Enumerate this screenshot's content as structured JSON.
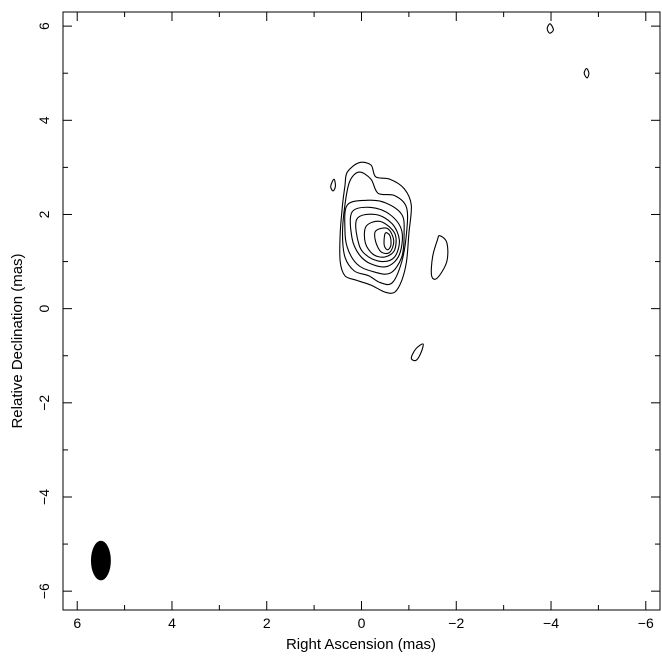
{
  "chart_data": {
    "type": "contour",
    "xlabel": "Right Ascension  (mas)",
    "ylabel": "Relative Declination  (mas)",
    "xlim": [
      6.3,
      -6.3
    ],
    "ylim": [
      -6.4,
      6.3
    ],
    "x_ticks": [
      6,
      4,
      2,
      0,
      -2,
      -4,
      -6
    ],
    "x_tick_labels": [
      "6",
      "4",
      "2",
      "0",
      "−2",
      "−4",
      "−6"
    ],
    "y_ticks": [
      6,
      4,
      2,
      0,
      -2,
      -4,
      -6
    ],
    "y_tick_labels": [
      "6",
      "4",
      "2",
      "0",
      "−2",
      "−4",
      "−6"
    ],
    "minor_tick_step": 1,
    "grid": false,
    "colors": {
      "line": "#000000",
      "background": "#ffffff"
    },
    "beam": {
      "x": 5.5,
      "y": -5.35,
      "width_mas": 0.42,
      "height_mas": 0.84,
      "pa_deg": 0
    },
    "contours": [
      {
        "name": "level-1",
        "closed": true,
        "points": [
          [
            0.3,
            2.9
          ],
          [
            0.05,
            3.1
          ],
          [
            -0.2,
            3.05
          ],
          [
            -0.3,
            2.8
          ],
          [
            -0.6,
            2.75
          ],
          [
            -0.9,
            2.55
          ],
          [
            -1.05,
            2.2
          ],
          [
            -1.0,
            1.6
          ],
          [
            -0.95,
            1.0
          ],
          [
            -0.85,
            0.6
          ],
          [
            -0.7,
            0.35
          ],
          [
            -0.5,
            0.35
          ],
          [
            -0.2,
            0.5
          ],
          [
            0.1,
            0.6
          ],
          [
            0.35,
            0.7
          ],
          [
            0.45,
            1.0
          ],
          [
            0.45,
            1.6
          ],
          [
            0.4,
            2.2
          ],
          [
            0.35,
            2.6
          ]
        ]
      },
      {
        "name": "level-2",
        "closed": true,
        "points": [
          [
            0.25,
            2.7
          ],
          [
            0.05,
            2.9
          ],
          [
            -0.2,
            2.75
          ],
          [
            -0.35,
            2.45
          ],
          [
            -0.7,
            2.4
          ],
          [
            -0.95,
            2.15
          ],
          [
            -0.95,
            1.6
          ],
          [
            -0.85,
            1.0
          ],
          [
            -0.65,
            0.55
          ],
          [
            -0.4,
            0.55
          ],
          [
            -0.15,
            0.7
          ],
          [
            0.15,
            0.8
          ],
          [
            0.35,
            1.1
          ],
          [
            0.4,
            1.6
          ],
          [
            0.35,
            2.2
          ]
        ]
      },
      {
        "name": "level-3",
        "closed": true,
        "points": [
          [
            0.3,
            2.2
          ],
          [
            -0.1,
            2.3
          ],
          [
            -0.5,
            2.25
          ],
          [
            -0.85,
            2.0
          ],
          [
            -0.9,
            1.6
          ],
          [
            -0.85,
            1.1
          ],
          [
            -0.6,
            0.75
          ],
          [
            -0.2,
            0.8
          ],
          [
            0.1,
            0.95
          ],
          [
            0.3,
            1.3
          ],
          [
            0.35,
            1.7
          ]
        ]
      },
      {
        "name": "level-4",
        "closed": true,
        "points": [
          [
            0.2,
            2.05
          ],
          [
            -0.2,
            2.15
          ],
          [
            -0.6,
            2.0
          ],
          [
            -0.85,
            1.65
          ],
          [
            -0.8,
            1.15
          ],
          [
            -0.55,
            0.9
          ],
          [
            -0.2,
            0.95
          ],
          [
            0.05,
            1.15
          ],
          [
            0.2,
            1.5
          ]
        ]
      },
      {
        "name": "level-5",
        "closed": true,
        "points": [
          [
            0.1,
            1.9
          ],
          [
            -0.3,
            2.0
          ],
          [
            -0.65,
            1.8
          ],
          [
            -0.8,
            1.45
          ],
          [
            -0.7,
            1.1
          ],
          [
            -0.45,
            1.0
          ],
          [
            -0.15,
            1.1
          ],
          [
            0.05,
            1.35
          ]
        ]
      },
      {
        "name": "level-6",
        "closed": true,
        "points": [
          [
            -0.1,
            1.75
          ],
          [
            -0.4,
            1.85
          ],
          [
            -0.7,
            1.6
          ],
          [
            -0.7,
            1.25
          ],
          [
            -0.5,
            1.1
          ],
          [
            -0.25,
            1.15
          ],
          [
            -0.08,
            1.4
          ]
        ]
      },
      {
        "name": "level-7",
        "closed": true,
        "points": [
          [
            -0.3,
            1.65
          ],
          [
            -0.55,
            1.7
          ],
          [
            -0.68,
            1.45
          ],
          [
            -0.6,
            1.2
          ],
          [
            -0.42,
            1.2
          ],
          [
            -0.3,
            1.42
          ]
        ]
      },
      {
        "name": "level-8",
        "closed": true,
        "points": [
          [
            -0.5,
            1.6
          ],
          [
            -0.6,
            1.55
          ],
          [
            -0.62,
            1.35
          ],
          [
            -0.55,
            1.25
          ],
          [
            -0.48,
            1.35
          ]
        ]
      },
      {
        "name": "blob-east",
        "closed": true,
        "points": [
          [
            0.58,
            2.75
          ],
          [
            0.55,
            2.6
          ],
          [
            0.6,
            2.5
          ],
          [
            0.65,
            2.6
          ]
        ]
      },
      {
        "name": "blob-jet",
        "closed": true,
        "points": [
          [
            -1.65,
            1.55
          ],
          [
            -1.8,
            1.4
          ],
          [
            -1.8,
            1.0
          ],
          [
            -1.6,
            0.65
          ],
          [
            -1.48,
            0.7
          ],
          [
            -1.5,
            1.1
          ],
          [
            -1.6,
            1.45
          ]
        ]
      },
      {
        "name": "blob-south",
        "closed": true,
        "points": [
          [
            -1.3,
            -0.75
          ],
          [
            -1.15,
            -0.85
          ],
          [
            -1.05,
            -1.05
          ],
          [
            -1.15,
            -1.1
          ],
          [
            -1.25,
            -0.95
          ]
        ]
      },
      {
        "name": "blob-ne-1",
        "closed": true,
        "points": [
          [
            -3.98,
            6.05
          ],
          [
            -3.92,
            5.95
          ],
          [
            -3.97,
            5.85
          ],
          [
            -4.05,
            5.92
          ]
        ]
      },
      {
        "name": "blob-ne-2",
        "closed": true,
        "points": [
          [
            -4.75,
            5.1
          ],
          [
            -4.7,
            5.0
          ],
          [
            -4.76,
            4.9
          ],
          [
            -4.8,
            5.0
          ]
        ]
      }
    ]
  }
}
